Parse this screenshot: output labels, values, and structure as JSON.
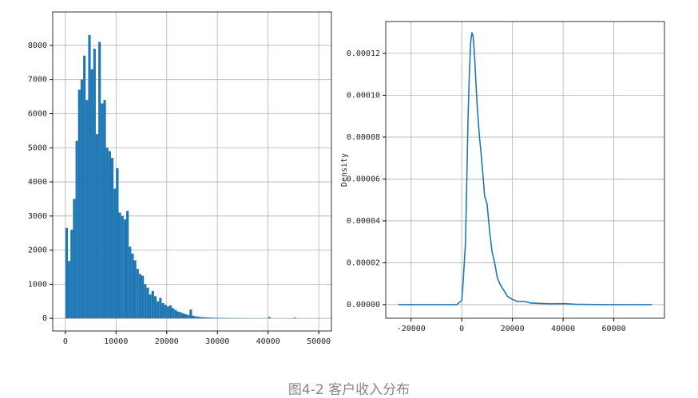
{
  "chart_data": [
    {
      "type": "histogram",
      "color": "#1f77b4",
      "grid": true,
      "bins": [
        0,
        500,
        1000,
        1500,
        2000,
        2500,
        3000,
        3500,
        4000,
        4500,
        5000,
        5500,
        6000,
        6500,
        7000,
        7500,
        8000,
        8500,
        9000,
        9500,
        10000,
        10500,
        11000,
        11500,
        12000,
        12500,
        13000,
        13500,
        14000,
        14500,
        15000,
        15500,
        16000,
        16500,
        17000,
        17500,
        18000,
        18500,
        19000,
        19500,
        20000,
        20500,
        21000,
        21500,
        22000,
        22500,
        23000,
        23500,
        24000,
        24500,
        25000,
        25500,
        26000,
        26500,
        27000,
        27500,
        28000,
        28500,
        29000,
        29500,
        30000,
        30500,
        31000,
        31500,
        32000,
        32500,
        33000,
        33500,
        34000,
        34500,
        35000,
        35500,
        36000,
        36500,
        37000,
        37500,
        38000,
        38500,
        39000,
        39500,
        40000,
        40500,
        41000,
        41500,
        42000,
        42500,
        43000,
        43500,
        44000,
        44500,
        45000,
        45500,
        46000,
        46500,
        47000,
        47500,
        48000,
        48500,
        49000,
        49500,
        50000
      ],
      "values": [
        2650,
        1680,
        2600,
        3500,
        5200,
        6700,
        7000,
        7700,
        6400,
        8300,
        7300,
        7900,
        5400,
        8100,
        6300,
        6400,
        5000,
        4900,
        4700,
        3800,
        4400,
        3100,
        3000,
        2900,
        3150,
        2100,
        1900,
        1700,
        1450,
        1300,
        1250,
        1000,
        900,
        700,
        800,
        650,
        500,
        600,
        450,
        400,
        350,
        380,
        300,
        250,
        200,
        180,
        150,
        120,
        100,
        260,
        80,
        60,
        50,
        40,
        35,
        30,
        25,
        25,
        20,
        20,
        15,
        15,
        12,
        10,
        10,
        8,
        8,
        6,
        6,
        5,
        5,
        4,
        4,
        3,
        3,
        3,
        2,
        2,
        2,
        2,
        40,
        2,
        1,
        1,
        1,
        1,
        1,
        1,
        1,
        1,
        20,
        1,
        1,
        1,
        1,
        1,
        1,
        1,
        1,
        1
      ],
      "xlim": [
        -2500,
        52500
      ],
      "xticks": [
        0,
        10000,
        20000,
        30000,
        40000,
        50000
      ],
      "ylim": [
        -370,
        8980
      ],
      "yticks": [
        0,
        1000,
        2000,
        3000,
        4000,
        5000,
        6000,
        7000,
        8000
      ]
    },
    {
      "type": "line",
      "color": "#1f77b4",
      "grid": true,
      "ylabel": "Density",
      "x": [
        -25000,
        -2000,
        0,
        500,
        1000,
        1500,
        2000,
        2500,
        3000,
        3500,
        4000,
        4500,
        5000,
        5500,
        6000,
        6500,
        7000,
        7500,
        8000,
        8500,
        9000,
        10000,
        11000,
        12000,
        13000,
        14000,
        15000,
        16000,
        17000,
        18000,
        20000,
        22000,
        25000,
        27000,
        30000,
        35000,
        40000,
        45000,
        50000,
        60000,
        75000
      ],
      "values": [
        0,
        0,
        2e-06,
        1e-05,
        2e-05,
        3e-05,
        6e-05,
        9e-05,
        0.00011,
        0.000125,
        0.00013,
        0.000128,
        0.00012,
        0.000108,
        9.7e-05,
        8.8e-05,
        8e-05,
        7.4e-05,
        6.7e-05,
        6e-05,
        5.2e-05,
        4.8e-05,
        3.5e-05,
        2.5e-05,
        2e-05,
        1.3e-05,
        1e-05,
        8e-06,
        6e-06,
        4e-06,
        2.5e-06,
        1.5e-06,
        1.5e-06,
        8e-07,
        6e-07,
        4e-07,
        5e-07,
        2e-07,
        1e-07,
        0,
        0
      ],
      "xlim": [
        -30000,
        80000
      ],
      "xticks": [
        -20000,
        0,
        20000,
        40000,
        60000
      ],
      "ylim": [
        -6.5e-06,
        0.0001352
      ],
      "yticks": [
        {
          "value": 0,
          "label": "0.00000"
        },
        {
          "value": 2e-05,
          "label": "0.00002"
        },
        {
          "value": 4e-05,
          "label": "0.00004"
        },
        {
          "value": 6e-05,
          "label": "0.00006"
        },
        {
          "value": 8e-05,
          "label": "0.00008"
        },
        {
          "value": 0.0001,
          "label": "0.00010"
        },
        {
          "value": 0.00012,
          "label": "0.00012"
        }
      ]
    }
  ],
  "caption": "图4-2 客户收入分布"
}
